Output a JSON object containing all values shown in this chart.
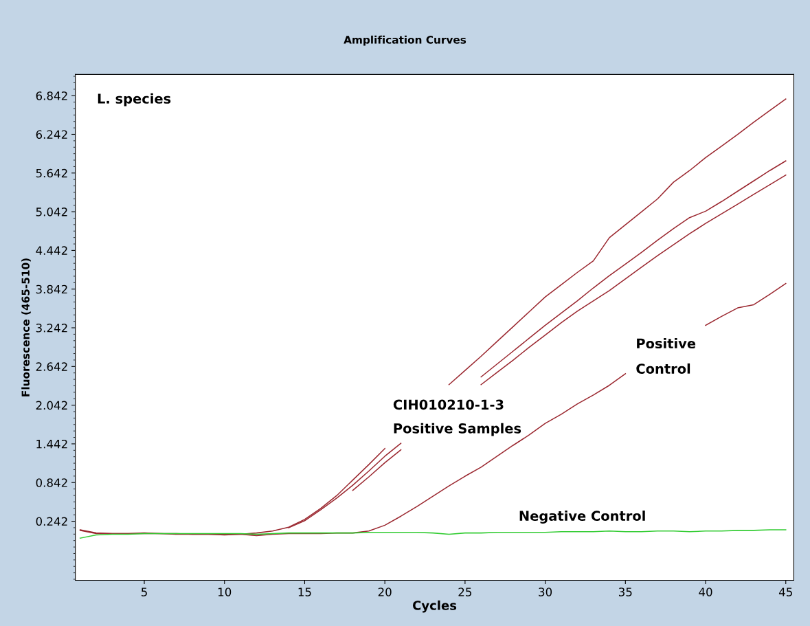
{
  "chart_data": {
    "type": "line",
    "title": "Amplification Curves",
    "xlabel": "Cycles",
    "ylabel": "Fluorescence (465-510)",
    "x": [
      1,
      2,
      3,
      4,
      5,
      6,
      7,
      8,
      9,
      10,
      11,
      12,
      13,
      14,
      15,
      16,
      17,
      18,
      19,
      20,
      21,
      22,
      23,
      24,
      25,
      26,
      27,
      28,
      29,
      30,
      31,
      32,
      33,
      34,
      35,
      36,
      37,
      38,
      39,
      40,
      41,
      42,
      43,
      44,
      45
    ],
    "series": [
      {
        "color": "#9b2830",
        "values": [
          0.11,
          0.06,
          0.05,
          0.05,
          0.06,
          0.05,
          0.05,
          0.04,
          0.04,
          0.03,
          0.04,
          0.06,
          0.09,
          0.15,
          0.27,
          0.44,
          0.64,
          0.88,
          1.12,
          1.37,
          null,
          null,
          null,
          2.36,
          2.58,
          2.8,
          3.03,
          3.26,
          3.49,
          3.72,
          3.91,
          4.1,
          4.28,
          4.64,
          4.84,
          5.04,
          5.24,
          5.5,
          5.68,
          5.88,
          6.06,
          6.24,
          6.43,
          6.61,
          6.79
        ]
      },
      {
        "color": "#9b2830",
        "values": [
          null,
          null,
          null,
          null,
          null,
          null,
          null,
          null,
          null,
          null,
          null,
          null,
          null,
          0.14,
          0.25,
          0.42,
          0.6,
          0.8,
          1.02,
          1.25,
          1.45,
          null,
          null,
          null,
          null,
          2.48,
          2.68,
          2.88,
          3.08,
          3.28,
          3.47,
          3.66,
          3.86,
          4.05,
          4.23,
          4.41,
          4.6,
          4.78,
          4.95,
          5.05,
          5.2,
          5.36,
          5.52,
          5.68,
          5.83
        ]
      },
      {
        "color": "#9b2830",
        "values": [
          null,
          null,
          null,
          null,
          null,
          null,
          null,
          null,
          null,
          null,
          null,
          null,
          null,
          null,
          null,
          null,
          null,
          0.72,
          0.93,
          1.15,
          1.35,
          null,
          null,
          null,
          null,
          2.36,
          2.55,
          2.74,
          2.94,
          3.13,
          3.32,
          3.5,
          3.66,
          3.82,
          4.0,
          4.18,
          4.36,
          4.53,
          4.7,
          4.86,
          5.01,
          5.16,
          5.31,
          5.46,
          5.61
        ]
      },
      {
        "color": "#9b2830",
        "values": [
          0.1,
          0.05,
          0.05,
          0.05,
          0.05,
          0.05,
          0.04,
          0.04,
          0.04,
          0.04,
          0.04,
          0.02,
          0.04,
          0.05,
          0.05,
          0.05,
          0.06,
          0.06,
          0.09,
          0.18,
          0.32,
          0.47,
          0.63,
          0.79,
          0.94,
          1.08,
          1.25,
          1.42,
          1.58,
          1.76,
          1.9,
          2.06,
          2.2,
          2.35,
          2.53,
          null,
          null,
          null,
          null,
          3.28,
          3.42,
          3.55,
          3.6,
          3.76,
          3.93
        ]
      },
      {
        "color": "#33cc33",
        "values": [
          -0.02,
          0.03,
          0.04,
          0.04,
          0.05,
          0.05,
          0.05,
          0.05,
          0.05,
          0.05,
          0.05,
          0.04,
          0.05,
          0.06,
          0.06,
          0.06,
          0.06,
          0.06,
          0.07,
          0.07,
          0.07,
          0.07,
          0.06,
          0.04,
          0.06,
          0.06,
          0.07,
          0.07,
          0.07,
          0.07,
          0.08,
          0.08,
          0.08,
          0.09,
          0.08,
          0.08,
          0.09,
          0.09,
          0.08,
          0.09,
          0.09,
          0.1,
          0.1,
          0.11,
          0.11
        ]
      }
    ],
    "annotations": [
      "L. species",
      "CIH010210-1-3",
      "Positive Samples",
      "Positive",
      "Control",
      "Negative Control"
    ],
    "xlim": [
      0.7,
      45.5
    ],
    "ylim": [
      -0.674,
      7.17
    ],
    "xticks": [
      5,
      10,
      15,
      20,
      25,
      30,
      35,
      40,
      45
    ],
    "yticks": [
      {
        "value": 0.242,
        "label": "0.242"
      },
      {
        "value": 0.842,
        "label": "0.842"
      },
      {
        "value": 1.442,
        "label": "1.442"
      },
      {
        "value": 2.042,
        "label": "2.042"
      },
      {
        "value": 2.642,
        "label": "2.642"
      },
      {
        "value": 3.242,
        "label": "3.242"
      },
      {
        "value": 3.842,
        "label": "3.842"
      },
      {
        "value": 4.442,
        "label": "4.442"
      },
      {
        "value": 5.042,
        "label": "5.042"
      },
      {
        "value": 5.642,
        "label": "5.642"
      },
      {
        "value": 6.242,
        "label": "6.242"
      },
      {
        "value": 6.842,
        "label": "6.842"
      }
    ],
    "grid": false,
    "marker": "none",
    "line_style": "solid"
  }
}
